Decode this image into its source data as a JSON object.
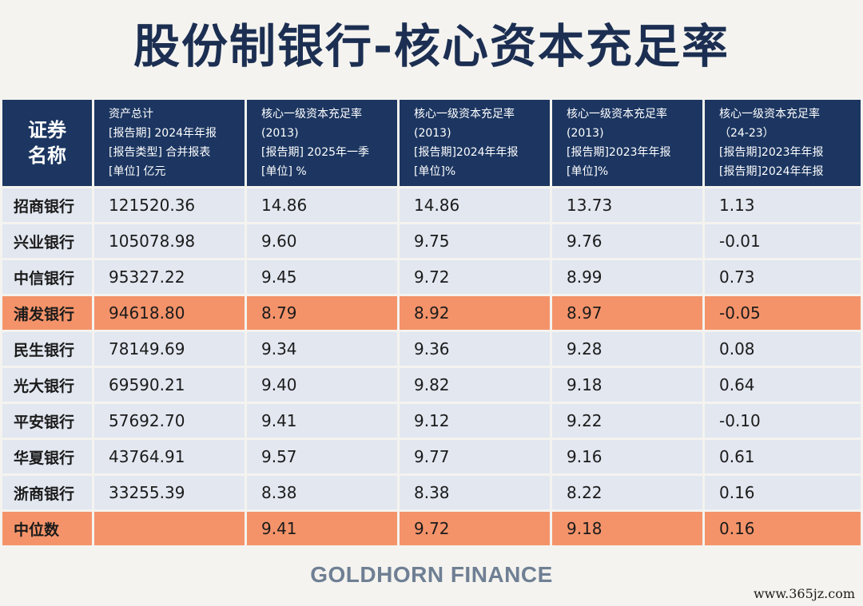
{
  "title": "股份制银行-核心资本充足率",
  "header": {
    "corner": [
      "证券",
      "名称"
    ],
    "columns": [
      {
        "lines": [
          "资产总计",
          "[报告期] 2024年年报",
          "[报告类型] 合并报表",
          "[单位] 亿元"
        ]
      },
      {
        "lines": [
          "核心一级资本充足率",
          "(2013)",
          "[报告期] 2025年一季",
          "[单位] %"
        ]
      },
      {
        "lines": [
          "核心一级资本充足率",
          "(2013)",
          "[报告期]2024年年报",
          "[单位]%"
        ]
      },
      {
        "lines": [
          "核心一级资本充足率",
          "(2013)",
          "[报告期]2023年年报",
          "[单位]%"
        ]
      },
      {
        "lines": [
          "核心一级资本充足率",
          "（24-23）",
          "[报告期]2023年年报",
          "[报告期]2024年年报"
        ]
      }
    ]
  },
  "rows": [
    {
      "name": "招商银行",
      "cells": [
        "121520.36",
        "14.86",
        "14.86",
        "13.73",
        "1.13"
      ],
      "highlight": false
    },
    {
      "name": "兴业银行",
      "cells": [
        "105078.98",
        "9.60",
        "9.75",
        "9.76",
        "-0.01"
      ],
      "highlight": false
    },
    {
      "name": "中信银行",
      "cells": [
        "95327.22",
        "9.45",
        "9.72",
        "8.99",
        "0.73"
      ],
      "highlight": false
    },
    {
      "name": "浦发银行",
      "cells": [
        "94618.80",
        "8.79",
        "8.92",
        "8.97",
        "-0.05"
      ],
      "highlight": true
    },
    {
      "name": "民生银行",
      "cells": [
        "78149.69",
        "9.34",
        "9.36",
        "9.28",
        "0.08"
      ],
      "highlight": false
    },
    {
      "name": "光大银行",
      "cells": [
        "69590.21",
        "9.40",
        "9.82",
        "9.18",
        "0.64"
      ],
      "highlight": false
    },
    {
      "name": "平安银行",
      "cells": [
        "57692.70",
        "9.41",
        "9.12",
        "9.22",
        "-0.10"
      ],
      "highlight": false
    },
    {
      "name": "华夏银行",
      "cells": [
        "43764.91",
        "9.57",
        "9.77",
        "9.16",
        "0.61"
      ],
      "highlight": false
    },
    {
      "name": "浙商银行",
      "cells": [
        "33255.39",
        "8.38",
        "8.38",
        "8.22",
        "0.16"
      ],
      "highlight": false
    },
    {
      "name": "中位数",
      "cells": [
        "",
        "9.41",
        "9.72",
        "9.18",
        "0.16"
      ],
      "highlight": true
    }
  ],
  "footer": "GOLDHORN FINANCE",
  "watermark": "www.365jz.com",
  "colors": {
    "header_bg": "#1c3661",
    "row_bg": "#e2e7f0",
    "highlight_bg": "#f4936a",
    "title": "#1c2f52"
  }
}
